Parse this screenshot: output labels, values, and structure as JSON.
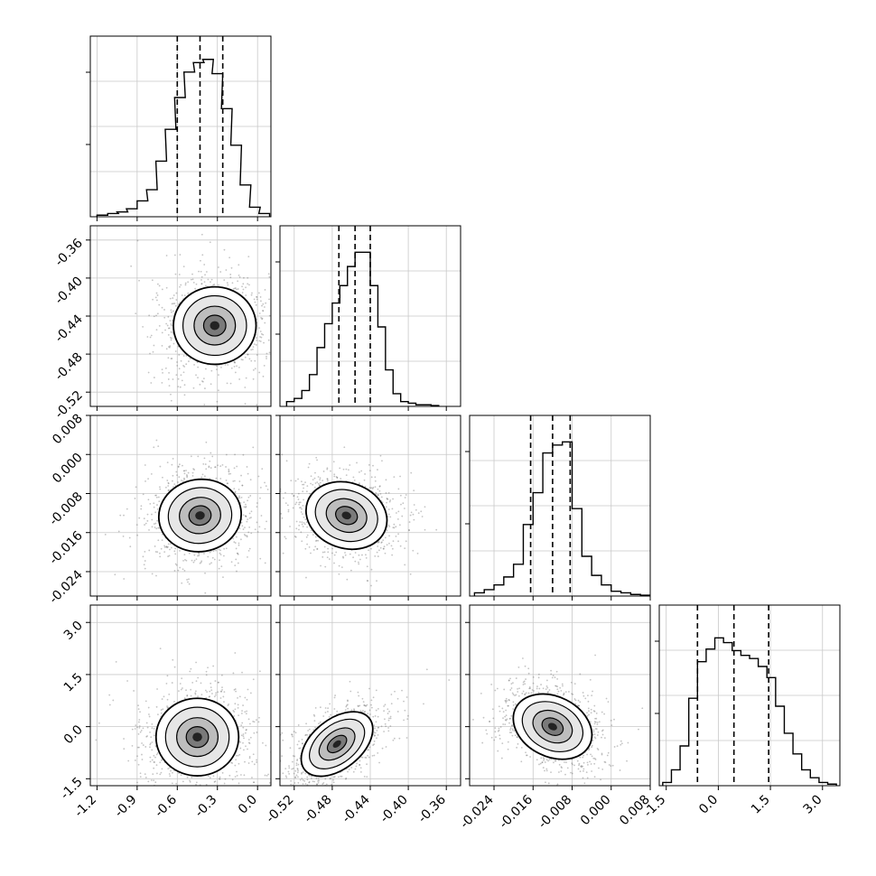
{
  "figure": {
    "type": "corner-plot"
  },
  "chart_data": {
    "type": "corner",
    "n_params": 4,
    "grid": true,
    "parameters": [
      {
        "ticks": [
          "-1.2",
          "-0.9",
          "-0.6",
          "-0.3",
          "0.0"
        ],
        "tick_values": [
          -1.2,
          -0.9,
          -0.6,
          -0.3,
          0.0
        ],
        "range": [
          -1.25,
          0.1
        ],
        "quantiles": [
          -0.6,
          -0.43,
          -0.26
        ],
        "hist": {
          "bins": [
            -1.2,
            -1.12,
            -1.05,
            -0.98,
            -0.9,
            -0.83,
            -0.76,
            -0.69,
            -0.62,
            -0.55,
            -0.48,
            -0.41,
            -0.34,
            -0.27,
            -0.2,
            -0.13,
            -0.06,
            0.01
          ],
          "counts": [
            0.01,
            0.02,
            0.03,
            0.05,
            0.1,
            0.17,
            0.35,
            0.55,
            0.75,
            0.91,
            0.97,
            0.99,
            0.9,
            0.68,
            0.45,
            0.2,
            0.06,
            0.02
          ]
        }
      },
      {
        "ticks": [
          "-0.52",
          "-0.48",
          "-0.44",
          "-0.40",
          "-0.36"
        ],
        "tick_values": [
          -0.52,
          -0.48,
          -0.44,
          -0.4,
          -0.36
        ],
        "range": [
          -0.535,
          -0.345
        ],
        "quantiles": [
          -0.473,
          -0.456,
          -0.44
        ],
        "hist": {
          "bins": [
            -0.528,
            -0.52,
            -0.512,
            -0.504,
            -0.496,
            -0.488,
            -0.48,
            -0.472,
            -0.464,
            -0.456,
            -0.448,
            -0.44,
            -0.432,
            -0.424,
            -0.416,
            -0.408,
            -0.4,
            -0.392,
            -0.384,
            -0.376
          ],
          "counts": [
            0.03,
            0.05,
            0.1,
            0.2,
            0.37,
            0.52,
            0.65,
            0.76,
            0.88,
            0.97,
            0.97,
            0.76,
            0.5,
            0.23,
            0.08,
            0.03,
            0.02,
            0.01,
            0.01,
            0.005
          ]
        }
      },
      {
        "ticks": [
          "-0.024",
          "-0.016",
          "-0.008",
          "0.000",
          "0.008"
        ],
        "tick_values": [
          -0.024,
          -0.016,
          -0.008,
          0.0,
          0.008
        ],
        "range": [
          -0.029,
          0.008
        ],
        "quantiles": [
          -0.0165,
          -0.012,
          -0.0084
        ],
        "hist": {
          "bins": [
            -0.028,
            -0.026,
            -0.024,
            -0.022,
            -0.02,
            -0.018,
            -0.016,
            -0.014,
            -0.012,
            -0.01,
            -0.008,
            -0.006,
            -0.004,
            -0.002,
            0.0,
            0.002,
            0.004,
            0.006
          ],
          "counts": [
            0.02,
            0.04,
            0.07,
            0.12,
            0.2,
            0.45,
            0.65,
            0.9,
            0.95,
            0.97,
            0.55,
            0.25,
            0.13,
            0.07,
            0.03,
            0.02,
            0.01,
            0.005
          ]
        }
      },
      {
        "ticks": [
          "-1.5",
          "0.0",
          "1.5",
          "3.0"
        ],
        "tick_values": [
          -1.5,
          0.0,
          1.5,
          3.0
        ],
        "range": [
          -1.7,
          3.5
        ],
        "quantiles": [
          -0.6,
          0.45,
          1.45
        ],
        "hist": {
          "bins": [
            -1.6,
            -1.35,
            -1.1,
            -0.85,
            -0.6,
            -0.35,
            -0.1,
            0.15,
            0.4,
            0.65,
            0.9,
            1.15,
            1.4,
            1.65,
            1.9,
            2.15,
            2.4,
            2.65,
            2.9,
            3.15
          ],
          "counts": [
            0.02,
            0.1,
            0.25,
            0.55,
            0.78,
            0.86,
            0.93,
            0.9,
            0.85,
            0.82,
            0.8,
            0.75,
            0.68,
            0.5,
            0.33,
            0.2,
            0.1,
            0.05,
            0.02,
            0.01
          ]
        }
      }
    ],
    "pairs": [
      {
        "x": 0,
        "y": 1,
        "mode": [
          -0.32,
          -0.45
        ],
        "rho": 0.0
      },
      {
        "x": 0,
        "y": 2,
        "mode": [
          -0.43,
          -0.0125
        ],
        "rho": 0.15
      },
      {
        "x": 1,
        "y": 2,
        "mode": [
          -0.465,
          -0.0125
        ],
        "rho": -0.35
      },
      {
        "x": 0,
        "y": 3,
        "mode": [
          -0.45,
          -0.3
        ],
        "rho": 0.0
      },
      {
        "x": 1,
        "y": 3,
        "mode": [
          -0.475,
          -0.5
        ],
        "rho": 0.8
      },
      {
        "x": 2,
        "y": 3,
        "mode": [
          -0.012,
          0.0
        ],
        "rho": -0.5
      }
    ]
  }
}
